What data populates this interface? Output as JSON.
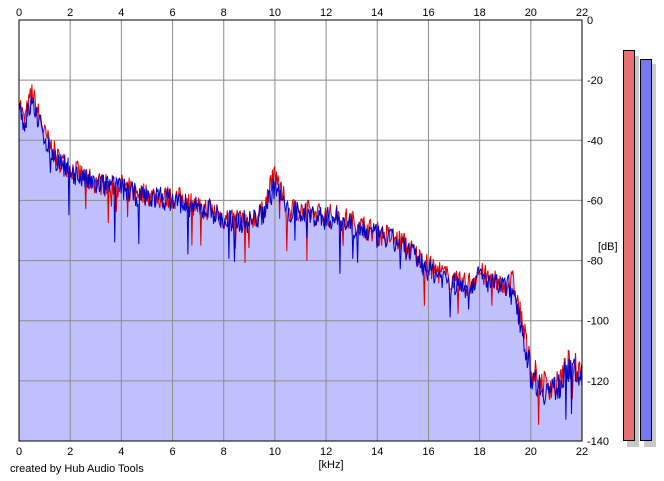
{
  "chart_data": {
    "type": "area",
    "x_unit_label": "[kHz]",
    "y_unit_label": "[dB]",
    "xlim": [
      0,
      22
    ],
    "ylim": [
      -140,
      0
    ],
    "x_ticks": [
      "0",
      "2",
      "4",
      "6",
      "8",
      "10",
      "12",
      "14",
      "16",
      "18",
      "20",
      "22"
    ],
    "y_ticks": [
      "0",
      "-20",
      "-40",
      "-60",
      "-80",
      "-100",
      "-120",
      "-140"
    ],
    "grid": true,
    "fill_color": "#c0c0ff",
    "series": [
      {
        "color": "#e00000",
        "x": [
          0,
          0.2,
          0.5,
          1,
          1.5,
          2,
          2.5,
          3,
          3.5,
          4,
          4.5,
          5,
          5.5,
          6,
          6.5,
          7,
          7.5,
          8,
          8.5,
          9,
          9.5,
          10,
          10.5,
          11,
          11.5,
          12,
          12.5,
          13,
          13.5,
          14,
          14.5,
          15,
          15.5,
          16,
          16.5,
          17,
          17.5,
          18,
          18.5,
          19,
          19.3,
          19.6,
          20,
          20.5,
          21,
          21.5,
          22
        ],
        "y": [
          -26,
          -34,
          -24,
          -38,
          -46,
          -49,
          -52,
          -54,
          -55,
          -55,
          -57,
          -58,
          -59,
          -59,
          -60,
          -62,
          -63,
          -66,
          -66,
          -66,
          -64,
          -51,
          -63,
          -63,
          -64,
          -65,
          -65,
          -67,
          -69,
          -71,
          -72,
          -74,
          -78,
          -82,
          -84,
          -87,
          -88,
          -84,
          -87,
          -88,
          -87,
          -98,
          -116,
          -121,
          -122,
          -114,
          -117
        ]
      },
      {
        "color": "#0000c8",
        "x": [
          0,
          0.2,
          0.5,
          1,
          1.5,
          2,
          2.5,
          3,
          3.5,
          4,
          4.5,
          5,
          5.5,
          6,
          6.5,
          7,
          7.5,
          8,
          8.5,
          9,
          9.5,
          10,
          10.5,
          11,
          11.5,
          12,
          12.5,
          13,
          13.5,
          14,
          14.5,
          15,
          15.5,
          16,
          16.5,
          17,
          17.5,
          18,
          18.5,
          19,
          19.3,
          19.6,
          20,
          20.5,
          21,
          21.5,
          22
        ],
        "y": [
          -28,
          -35,
          -27,
          -39,
          -47,
          -50,
          -53,
          -55,
          -55,
          -56,
          -58,
          -59,
          -59,
          -60,
          -61,
          -63,
          -63,
          -67,
          -67,
          -67,
          -65,
          -55,
          -64,
          -64,
          -65,
          -66,
          -66,
          -68,
          -70,
          -72,
          -73,
          -75,
          -79,
          -83,
          -85,
          -88,
          -89,
          -85,
          -88,
          -89,
          -88,
          -100,
          -118,
          -123,
          -123,
          -116,
          -119
        ]
      }
    ],
    "level_meters": [
      {
        "color": "#e87070",
        "level_db": -10
      },
      {
        "color": "#7878f0",
        "level_db": -13
      }
    ]
  },
  "footer": {
    "credit": "created by Hub Audio Tools"
  }
}
